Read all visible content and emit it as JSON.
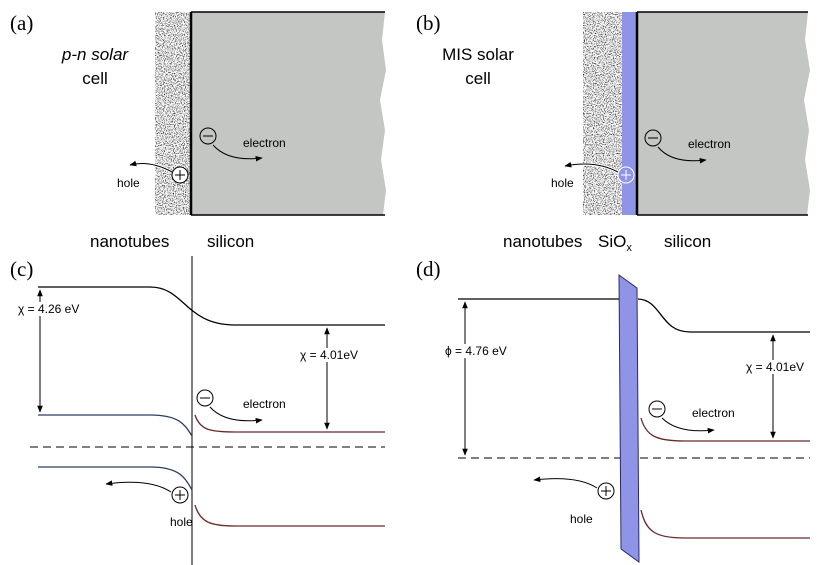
{
  "panels": [
    {
      "label": "(a)",
      "title_lines": [
        "p-n solar",
        "cell"
      ],
      "hole": "hole",
      "electron": "electron",
      "bottom_labels": [
        "nanotubes",
        "silicon"
      ]
    },
    {
      "label": "(b)",
      "title_lines": [
        "MIS solar",
        "cell"
      ],
      "hole": "hole",
      "electron": "electron",
      "bottom_labels": [
        "nanotubes",
        "silicon"
      ],
      "oxide_label": {
        "main": "SiO",
        "sub": "x"
      }
    },
    {
      "label": "(c)",
      "left_gap": "χ = 4.26 eV",
      "right_gap": "χ = 4.01eV",
      "electron": "electron",
      "hole": "hole"
    },
    {
      "label": "(d)",
      "left_gap": "ϕ = 4.76 eV",
      "right_gap": "χ = 4.01eV",
      "electron": "electron",
      "hole": "hole"
    }
  ]
}
